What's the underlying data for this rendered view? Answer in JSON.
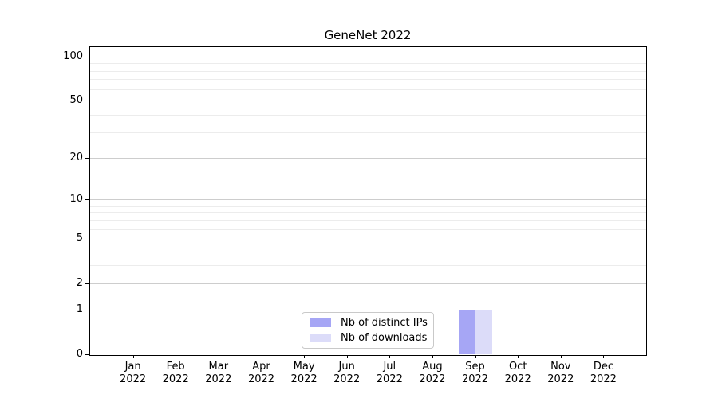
{
  "figure": {
    "background": "#ffffff"
  },
  "chart_data": {
    "type": "bar",
    "title": "GeneNet 2022",
    "categories": [
      "Jan",
      "Feb",
      "Mar",
      "Apr",
      "May",
      "Jun",
      "Jul",
      "Aug",
      "Sep",
      "Oct",
      "Nov",
      "Dec"
    ],
    "category_year": "2022",
    "series": [
      {
        "name": "Nb of distinct IPs",
        "color": "#a6a6f5",
        "values": [
          0,
          0,
          0,
          0,
          0,
          0,
          0,
          0,
          1,
          0,
          0,
          0
        ]
      },
      {
        "name": "Nb of downloads",
        "color": "#dcdcf9",
        "values": [
          0,
          0,
          0,
          0,
          0,
          0,
          0,
          0,
          1,
          0,
          0,
          0
        ]
      }
    ],
    "xlabel": "",
    "ylabel": "",
    "y_scale": "log1p",
    "ylim": [
      0,
      116
    ],
    "xlim": [
      -1,
      12
    ],
    "y_major_ticks": [
      0,
      1,
      2,
      5,
      10,
      20,
      50,
      100
    ],
    "y_minor_gridlines": [
      3,
      4,
      6,
      7,
      8,
      9,
      30,
      40,
      60,
      70,
      80,
      90
    ],
    "grid": "horizontal",
    "legend_position": "lower center, inside plot"
  },
  "style": {
    "axis_color": "#000000",
    "major_grid_color": "#cdcdcd",
    "minor_grid_color": "#ececec",
    "legend_border_color": "#c9c9c9",
    "text_color": "#000000"
  }
}
